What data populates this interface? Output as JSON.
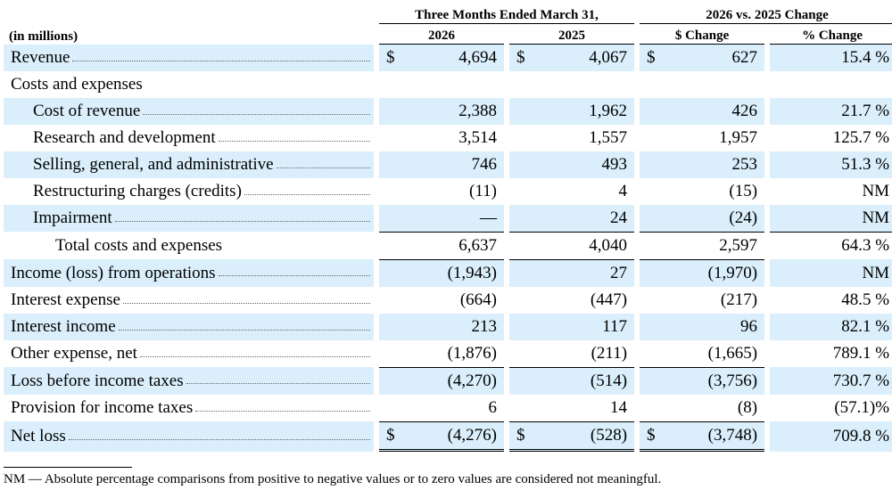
{
  "header": {
    "period_group": "Three Months Ended March 31,",
    "change_group": "2026 vs. 2025 Change",
    "units": "(in millions)",
    "col_2026": "2026",
    "col_2025": "2025",
    "col_dollar": "$ Change",
    "col_pct": "% Change"
  },
  "currency_symbol": "$",
  "rows": [
    {
      "label": "Revenue",
      "v2026": "4,694",
      "v2025": "4,067",
      "change": "627",
      "pct": "15.4 %"
    },
    {
      "label": "Costs and expenses"
    },
    {
      "label": "Cost of revenue",
      "v2026": "2,388",
      "v2025": "1,962",
      "change": "426",
      "pct": "21.7 %"
    },
    {
      "label": "Research and development",
      "v2026": "3,514",
      "v2025": "1,557",
      "change": "1,957",
      "pct": "125.7 %"
    },
    {
      "label": "Selling, general, and administrative",
      "v2026": "746",
      "v2025": "493",
      "change": "253",
      "pct": "51.3 %"
    },
    {
      "label": "Restructuring charges (credits)",
      "v2026": "(11)",
      "v2025": "4",
      "change": "(15)",
      "pct": "NM"
    },
    {
      "label": "Impairment",
      "v2026": "—",
      "v2025": "24",
      "change": "(24)",
      "pct": "NM"
    },
    {
      "label": "Total costs and expenses",
      "v2026": "6,637",
      "v2025": "4,040",
      "change": "2,597",
      "pct": "64.3 %"
    },
    {
      "label": "Income (loss) from operations",
      "v2026": "(1,943)",
      "v2025": "27",
      "change": "(1,970)",
      "pct": "NM"
    },
    {
      "label": "Interest expense",
      "v2026": "(664)",
      "v2025": "(447)",
      "change": "(217)",
      "pct": "48.5 %"
    },
    {
      "label": "Interest income",
      "v2026": "213",
      "v2025": "117",
      "change": "96",
      "pct": "82.1 %"
    },
    {
      "label": "Other expense, net",
      "v2026": "(1,876)",
      "v2025": "(211)",
      "change": "(1,665)",
      "pct": "789.1 %"
    },
    {
      "label": "Loss before income taxes",
      "v2026": "(4,270)",
      "v2025": "(514)",
      "change": "(3,756)",
      "pct": "730.7 %"
    },
    {
      "label": "Provision for income taxes",
      "v2026": "6",
      "v2025": "14",
      "change": "(8)",
      "pct": "(57.1)%"
    },
    {
      "label": "Net loss",
      "v2026": "(4,276)",
      "v2025": "(528)",
      "change": "(3,748)",
      "pct": "709.8 %"
    }
  ],
  "footnote": "NM — Absolute percentage comparisons from positive to negative values or to zero values are considered not meaningful."
}
